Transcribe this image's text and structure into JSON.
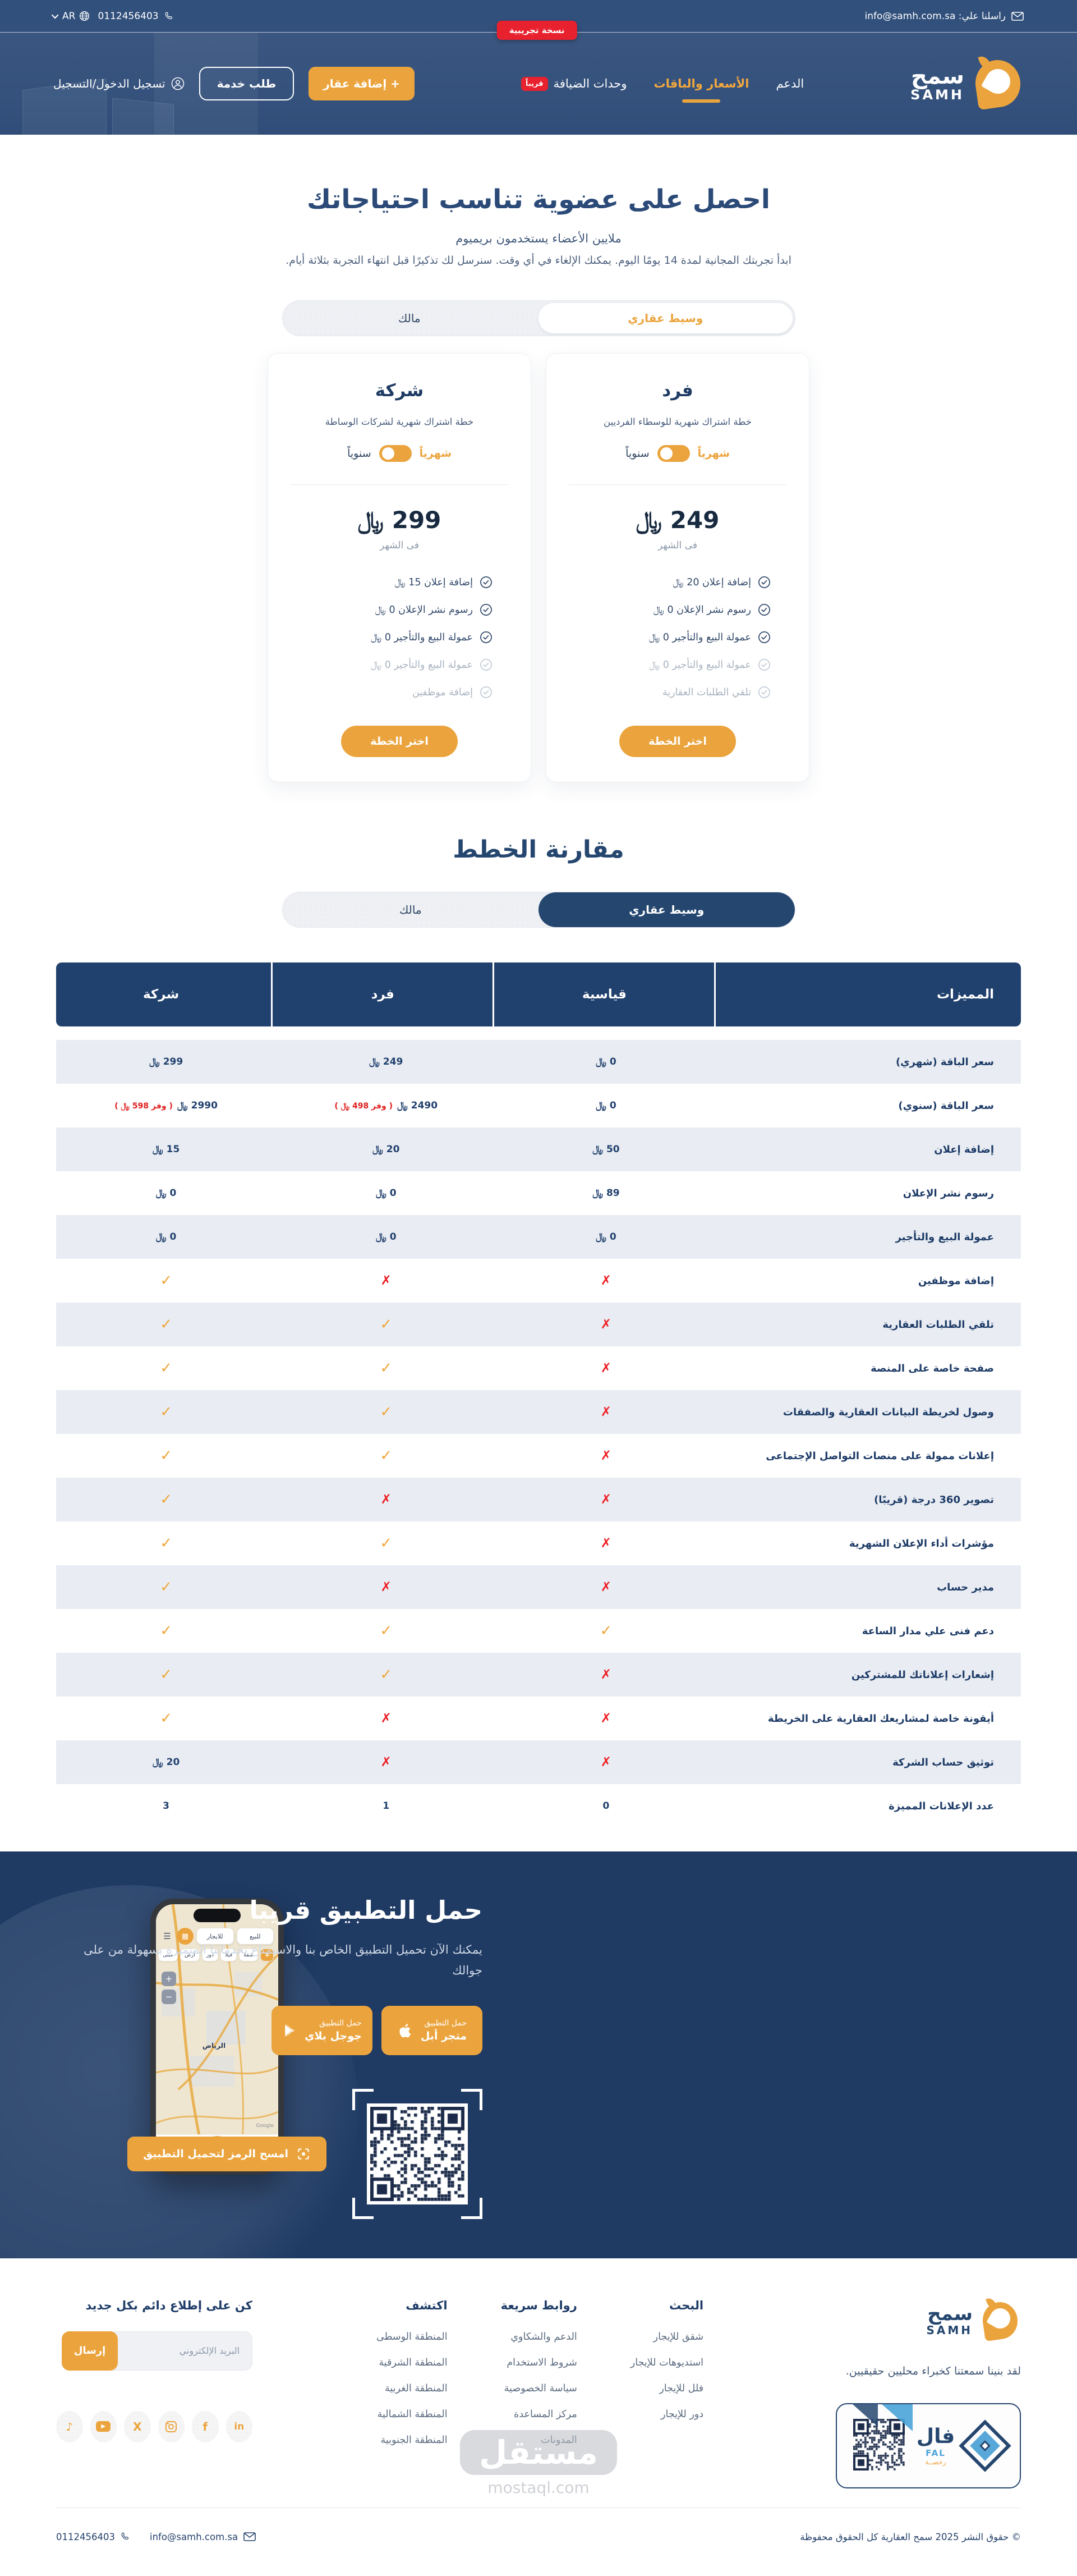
{
  "colors": {
    "accent_orange": "#eba43d",
    "navy": "#20406d",
    "badge_red": "#e8212e",
    "row_stripe": "#e9edf3"
  },
  "topbar": {
    "contact_label": "راسلنا علي: info@samh.com.sa",
    "demo_badge": "نسخة تجريبية",
    "lang": "AR",
    "phone": "0112456403"
  },
  "nav": {
    "brand_ar": "سمح",
    "brand_en": "SAMH",
    "links": [
      {
        "label": "الدعم",
        "active": false
      },
      {
        "label": "الأسعار والباقات",
        "active": true
      },
      {
        "label": "وحدات الضيافة",
        "active": false,
        "badge": "قريباً"
      }
    ],
    "add_property": "+ إضافة عقار",
    "request_service": "طلب خدمة",
    "login": "تسجيل الدخول/التسجيل"
  },
  "hero": {
    "title": "احصل على عضوية تناسب احتياجاتك",
    "subtitle": "ملايين الأعضاء يستخدمون بريميوم",
    "description": "ابدأ تجربتك المجانية لمدة 14 يومًا اليوم. يمكنك الإلغاء في أي وقت. سنرسل لك تذكيرًا قبل انتهاء التجربة بثلاثة أيام.",
    "audience_toggle": {
      "active": "وسيط عقاري",
      "inactive": "مالك"
    }
  },
  "plans": [
    {
      "name": "فرد",
      "subtitle": "خطة اشتراك شهرية للوسطاء الفرديين",
      "billing_monthly": "شهرياً",
      "billing_yearly": "سنوياً",
      "price": "249 ﷼",
      "period": "فى الشهر",
      "features": [
        {
          "label": "إضافة إعلان 20 ﷼",
          "muted": false
        },
        {
          "label": "رسوم نشر الإعلان 0 ﷼",
          "muted": false
        },
        {
          "label": "عمولة البيع والتأجير 0 ﷼",
          "muted": false
        },
        {
          "label": "عمولة البيع والتأجير 0 ﷼",
          "muted": true
        },
        {
          "label": "تلقي الطلبات العقارية",
          "muted": true
        }
      ],
      "cta": "اختر الخطة"
    },
    {
      "name": "شركة",
      "subtitle": "خطة اشتراك شهرية لشركات الوساطة",
      "billing_monthly": "شهرياً",
      "billing_yearly": "سنوياً",
      "price": "299 ﷼",
      "period": "فى الشهر",
      "features": [
        {
          "label": "إضافة إعلان 15 ﷼",
          "muted": false
        },
        {
          "label": "رسوم نشر الإعلان 0 ﷼",
          "muted": false
        },
        {
          "label": "عمولة البيع والتأجير 0 ﷼",
          "muted": false
        },
        {
          "label": "عمولة البيع والتأجير 0 ﷼",
          "muted": true
        },
        {
          "label": "إضافة موظفين",
          "muted": true
        }
      ],
      "cta": "اختر الخطة"
    }
  ],
  "comparison": {
    "title": "مقارنة الخطط",
    "toggle": {
      "active": "وسيط عقاري",
      "inactive": "مالك"
    },
    "table": {
      "headers": [
        "المميزات",
        "قياسية",
        "فرد",
        "شركة"
      ],
      "rows": [
        {
          "feature": "سعر الباقة (شهري)",
          "values": [
            {
              "t": "price",
              "v": "0 ﷼"
            },
            {
              "t": "price",
              "v": "249 ﷼"
            },
            {
              "t": "price",
              "v": "299 ﷼"
            }
          ]
        },
        {
          "feature": "سعر الباقة (سنوي)",
          "values": [
            {
              "t": "price",
              "v": "0 ﷼"
            },
            {
              "t": "price",
              "v": "2490 ﷼",
              "note": "( وفر 498 ﷼ )"
            },
            {
              "t": "price",
              "v": "2990 ﷼",
              "note": "( وفر 598 ﷼ )"
            }
          ]
        },
        {
          "feature": "إضافة إعلان",
          "values": [
            {
              "t": "price",
              "v": "50 ﷼"
            },
            {
              "t": "price",
              "v": "20 ﷼"
            },
            {
              "t": "price",
              "v": "15 ﷼"
            }
          ]
        },
        {
          "feature": "رسوم نشر الإعلان",
          "values": [
            {
              "t": "price",
              "v": "89 ﷼"
            },
            {
              "t": "price",
              "v": "0 ﷼"
            },
            {
              "t": "price",
              "v": "0 ﷼"
            }
          ]
        },
        {
          "feature": "عمولة البيع والتأجير",
          "values": [
            {
              "t": "price",
              "v": "0 ﷼"
            },
            {
              "t": "price",
              "v": "0 ﷼"
            },
            {
              "t": "price",
              "v": "0 ﷼"
            }
          ]
        },
        {
          "feature": "إضافة موظفين",
          "values": [
            {
              "t": "cross"
            },
            {
              "t": "cross"
            },
            {
              "t": "check"
            }
          ]
        },
        {
          "feature": "تلقي الطلبات العقارية",
          "values": [
            {
              "t": "cross"
            },
            {
              "t": "check"
            },
            {
              "t": "check"
            }
          ]
        },
        {
          "feature": "صفحة خاصة على المنصة",
          "values": [
            {
              "t": "cross"
            },
            {
              "t": "check"
            },
            {
              "t": "check"
            }
          ]
        },
        {
          "feature": "وصول لخريطة البيانات العقارية والصفقات",
          "values": [
            {
              "t": "cross"
            },
            {
              "t": "check"
            },
            {
              "t": "check"
            }
          ]
        },
        {
          "feature": "إعلانات ممولة على منصات التواصل الإجتماعى",
          "values": [
            {
              "t": "cross"
            },
            {
              "t": "check"
            },
            {
              "t": "check"
            }
          ]
        },
        {
          "feature": "تصوير 360 درجة (قريبًا)",
          "values": [
            {
              "t": "cross"
            },
            {
              "t": "cross"
            },
            {
              "t": "check"
            }
          ]
        },
        {
          "feature": "مؤشرات أداء الإعلان الشهرية",
          "values": [
            {
              "t": "cross"
            },
            {
              "t": "check"
            },
            {
              "t": "check"
            }
          ]
        },
        {
          "feature": "مدير حساب",
          "values": [
            {
              "t": "cross"
            },
            {
              "t": "cross"
            },
            {
              "t": "check"
            }
          ]
        },
        {
          "feature": "دعم فنى علي مدار الساعة",
          "values": [
            {
              "t": "check"
            },
            {
              "t": "check"
            },
            {
              "t": "check"
            }
          ]
        },
        {
          "feature": "إشعارات إعلاناتك للمشتركين",
          "values": [
            {
              "t": "cross"
            },
            {
              "t": "check"
            },
            {
              "t": "check"
            }
          ]
        },
        {
          "feature": "أيقونة خاصة لمشاريعك العقارية على الخريطة",
          "values": [
            {
              "t": "cross"
            },
            {
              "t": "cross"
            },
            {
              "t": "check"
            }
          ]
        },
        {
          "feature": "توثيق حساب الشركة",
          "values": [
            {
              "t": "cross"
            },
            {
              "t": "cross"
            },
            {
              "t": "price",
              "v": "20 ﷼"
            }
          ]
        },
        {
          "feature": "عدد الإعلانات المميزة",
          "values": [
            {
              "t": "num",
              "v": "0"
            },
            {
              "t": "num",
              "v": "1"
            },
            {
              "t": "num",
              "v": "3"
            }
          ]
        }
      ]
    }
  },
  "app": {
    "title": "حمل التطبيق قريبا",
    "description": "يمكنك الآن تحميل التطبيق الخاص بنا والاستمتاع بخدماتنا المتميزة بسهولة من على جوالك",
    "store_buttons": [
      {
        "line1": "حمل التطبيق",
        "line2": "متجر أبل",
        "icon": "apple-icon"
      },
      {
        "line1": "حمل التطبيق",
        "line2": "جوجل بلاي",
        "icon": "google-play-icon"
      }
    ],
    "scan_button": "امسح الرمز لتحميل التطبيق",
    "phone": {
      "pills": [
        "للبيع",
        "للايجار"
      ],
      "chips": [
        "شقة",
        "فيلا",
        "دور",
        "أرض",
        "مبنى",
        "مكـ"
      ],
      "city_label": "الرياض",
      "map_credit": "Google"
    }
  },
  "footer": {
    "brand_ar": "سمح",
    "brand_en": "SAMH",
    "tagline": "لقد بنينا سمعتنا كخبراء محليين حقيقيين.",
    "columns": [
      {
        "title": "البحث",
        "links": [
          "شقق للإيجار",
          "استديوهات للإيجار",
          "فلل للإيجار",
          "دور للإيجار"
        ]
      },
      {
        "title": "روابط سريعة",
        "links": [
          "الدعم والشكاوي",
          "شروط الاستخدام",
          "سياسة الخصوصية",
          "مركز المساعدة",
          "المدونات"
        ]
      },
      {
        "title": "اكتشف",
        "links": [
          "المنطقة الوسطى",
          "المنطقة الشرقية",
          "المنطقة الغربية",
          "المنطقة الشمالية",
          "المنطقة الجنوبية"
        ]
      }
    ],
    "newsletter": {
      "title": "كن على إطلاع دائم بكل جديد",
      "placeholder": "البريد الإلكتروني",
      "submit": "إرسال"
    },
    "socials": [
      "linkedin",
      "facebook",
      "instagram",
      "x",
      "youtube",
      "tiktok"
    ],
    "fal_badge": {
      "name_ar": "فال",
      "name_en": "FAL",
      "sub": "رخصــة"
    },
    "copyright": "© حقوق النشر 2025 سمح العقارية كل الحقوق محفوظة",
    "phone": "0112456403",
    "email": "info@samh.com.sa"
  },
  "watermark": {
    "logo": "مستقل",
    "text": "mostaql.com"
  }
}
